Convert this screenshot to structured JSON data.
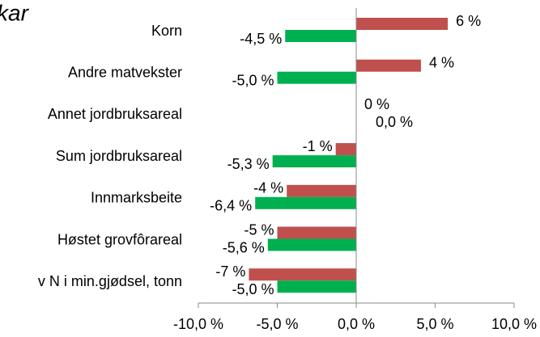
{
  "chart_data": {
    "type": "barh",
    "title": "kar",
    "categories": [
      "Korn",
      "Andre matvekster",
      "Annet jordbruksareal",
      "Sum jordbruksareal",
      "Innmarksbeite",
      "Høstet grovfôrareal",
      "v N i min.gjødsel, tonn"
    ],
    "series": [
      {
        "color": "#c0504d",
        "values": [
          5.8,
          4.1,
          0,
          -1.3,
          -4.4,
          -5.0,
          -6.8
        ],
        "value_labels": [
          "6 %",
          "4 %",
          "0 %",
          "-1 %",
          "-4 %",
          "-5 %",
          "-7 %"
        ]
      },
      {
        "color": "#00b050",
        "values": [
          -4.5,
          -5.0,
          0.0,
          -5.3,
          -6.4,
          -5.6,
          -5.0
        ],
        "value_labels": [
          "-4,5 %",
          "-5,0 %",
          "0,0 %",
          "-5,3 %",
          "-6,4 %",
          "-5,6 %",
          "-5,0 %"
        ]
      }
    ],
    "xlim": [
      -10,
      10
    ],
    "xticks": [
      {
        "value": -10,
        "label": "-10,0 %"
      },
      {
        "value": -5,
        "label": "-5,0 %"
      },
      {
        "value": 0,
        "label": "0,0 %"
      },
      {
        "value": 5,
        "label": "5,0 %"
      },
      {
        "value": 10,
        "label": "10,0 %"
      }
    ]
  }
}
